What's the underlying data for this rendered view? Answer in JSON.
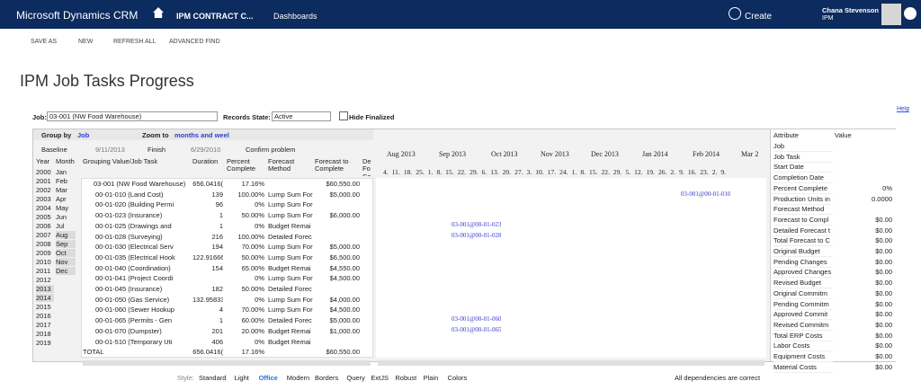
{
  "nav": {
    "brand": "Microsoft Dynamics CRM",
    "entity": "IPM CONTRACT C...",
    "area": "Dashboards",
    "create": "Create",
    "user_name": "Chana Stevenson",
    "user_org": "IPM"
  },
  "toolbar": [
    "SAVE AS",
    "NEW",
    "REFRESH ALL",
    "ADVANCED FIND"
  ],
  "title": "IPM Job Tasks Progress",
  "help": "Help",
  "filters": {
    "job_label": "Job:",
    "job_value": "03-001 (NW Food Warehouse)",
    "state_label": "Records State:",
    "state_value": "Active",
    "hide_finalized": "Hide Finalized"
  },
  "grid_controls": {
    "group_label": "Group by",
    "group_value": "Job",
    "zoom_label": "Zoom to",
    "zoom_value": "months and weel",
    "baseline": "Baseline",
    "baseline_date": "9/11/2013",
    "finish": "Finish",
    "finish_date": "6/29/2010",
    "confirm": "Confirm problem"
  },
  "years": [
    "2000",
    "2001",
    "2002",
    "2003",
    "2004",
    "2005",
    "2006",
    "2007",
    "2008",
    "2009",
    "2010",
    "2011",
    "2012",
    "2013",
    "2014",
    "2015",
    "2016",
    "2017",
    "2018",
    "2019"
  ],
  "months": [
    "Jan",
    "Feb",
    "Mar",
    "Apr",
    "May",
    "Jun",
    "Jul",
    "Aug",
    "Sep",
    "Oct",
    "Nov",
    "Dec"
  ],
  "columns": [
    "Year",
    "Month",
    "Grouping Value/Job Task",
    "Duration",
    "Percent Complete",
    "Forecast Method",
    "Forecast to Complete",
    "De Fo Co"
  ],
  "rows": [
    {
      "task": "03-001 (NW Food Warehouse)",
      "duration": "656.0416(",
      "percent": "17.16%",
      "forecast": "$60,550.00"
    },
    {
      "task": "00-01-010 (Land Cost)",
      "duration": "139",
      "percent": "100.00%",
      "method": "Lump Sum For",
      "forecast": "$5,000.00"
    },
    {
      "task": "00-01-020 (Building Permi",
      "duration": "96",
      "percent": "0%",
      "method": "Lump Sum For"
    },
    {
      "task": "00-01-023 (Insurance)",
      "duration": "1",
      "percent": "50.00%",
      "method": "Lump Sum For",
      "forecast": "$6,000.00"
    },
    {
      "task": "00-01-025 (Drawings and",
      "duration": "1",
      "percent": "0%",
      "method": "Budget Remai"
    },
    {
      "task": "00-01-028 (Surveying)",
      "duration": "216",
      "percent": "100.00%",
      "method": "Detailed Forec"
    },
    {
      "task": "00-01-030 (Electrical Serv",
      "duration": "194",
      "percent": "70.00%",
      "method": "Lump Sum For",
      "forecast": "$5,000.00"
    },
    {
      "task": "00-01-035 (Electrical Hook",
      "duration": "122.91666",
      "percent": "50.00%",
      "method": "Lump Sum For",
      "forecast": "$6,500.00"
    },
    {
      "task": "00-01-040 (Coordination)",
      "duration": "154",
      "percent": "65.00%",
      "method": "Budget Remai",
      "forecast": "$4,550.00"
    },
    {
      "task": "00-01-041 (Project Coordi",
      "percent": "0%",
      "method": "Lump Sum For",
      "forecast": "$4,500.00"
    },
    {
      "task": "00-01-045 (Insurance)",
      "duration": "182",
      "percent": "50.00%",
      "method": "Detailed Forec"
    },
    {
      "task": "00-01-050 (Gas Service)",
      "duration": "132.95833",
      "percent": "0%",
      "method": "Lump Sum For",
      "forecast": "$4,000.00"
    },
    {
      "task": "00-01-060 (Sewer Hookup",
      "duration": "4",
      "percent": "70.00%",
      "method": "Lump Sum For",
      "forecast": "$4,500.00"
    },
    {
      "task": "00-01-065 (Permits - Gen",
      "duration": "1",
      "percent": "60.00%",
      "method": "Detailed Forec",
      "forecast": "$5,000.00"
    },
    {
      "task": "00-01-070 (Dumpster)",
      "duration": "201",
      "percent": "20.00%",
      "method": "Budget Remai",
      "forecast": "$1,000.00"
    },
    {
      "task": "00-01-510 (Temporary Uti",
      "duration": "406",
      "percent": "0%",
      "method": "Budget Remai"
    },
    {
      "task": "TOTAL",
      "duration": "656.0416(",
      "percent": "17.16%",
      "forecast": "$60,550.00"
    }
  ],
  "gantt_months": [
    "Aug 2013",
    "Sep 2013",
    "Oct 2013",
    "Nov 2013",
    "Dec 2013",
    "Jan 2014",
    "Feb 2014",
    "Mar 2"
  ],
  "gantt_days": "4. 11. 18. 25. 1. 8. 15. 22. 29. 6. 13. 20. 27. 3. 10. 17. 24. 1. 8. 15. 22. 29. 5. 12. 19. 26. 2. 9. 16. 23. 2. 9.",
  "gantt_labels": [
    "03-001@00-01-010",
    "03-001@00-01-023",
    "03-001@00-01-028",
    "03-001@00-01-060",
    "03-001@00-01-065"
  ],
  "attributes": {
    "header": [
      "Attribute",
      "Value"
    ],
    "rows": [
      {
        "name": "Job"
      },
      {
        "name": "Job Task"
      },
      {
        "name": "Start Date"
      },
      {
        "name": "Completion Date"
      },
      {
        "name": "Percent Complete",
        "value": "0%"
      },
      {
        "name": "Production Units in",
        "value": "0.0000"
      },
      {
        "name": "Forecast Method"
      },
      {
        "name": "Forecast to Compl",
        "value": "$0.00"
      },
      {
        "name": "Detailed Forecast t",
        "value": "$0.00"
      },
      {
        "name": "Total Forecast to C",
        "value": "$0.00"
      },
      {
        "name": "Original Budget",
        "value": "$0.00"
      },
      {
        "name": "Pending Changes",
        "value": "$0.00"
      },
      {
        "name": "Approved Changes",
        "value": "$0.00"
      },
      {
        "name": "Revised Budget",
        "value": "$0.00"
      },
      {
        "name": "Original Commitm",
        "value": "$0.00"
      },
      {
        "name": "Pending Commitm",
        "value": "$0.00"
      },
      {
        "name": "Approved Commit",
        "value": "$0.00"
      },
      {
        "name": "Revised Commitm",
        "value": "$0.00"
      },
      {
        "name": "Total ERP Costs",
        "value": "$0.00"
      },
      {
        "name": "Labor Costs",
        "value": "$0.00"
      },
      {
        "name": "Equipment Costs",
        "value": "$0.00"
      },
      {
        "name": "Material Costs",
        "value": "$0.00"
      }
    ]
  },
  "style_bar": {
    "label": "Style:",
    "options": [
      "Standard",
      "Light",
      "Office",
      "Modern",
      "Borders",
      "Query",
      "ExtJS",
      "Robust",
      "Plain",
      "Colors"
    ],
    "status": "All dependencies are correct"
  }
}
